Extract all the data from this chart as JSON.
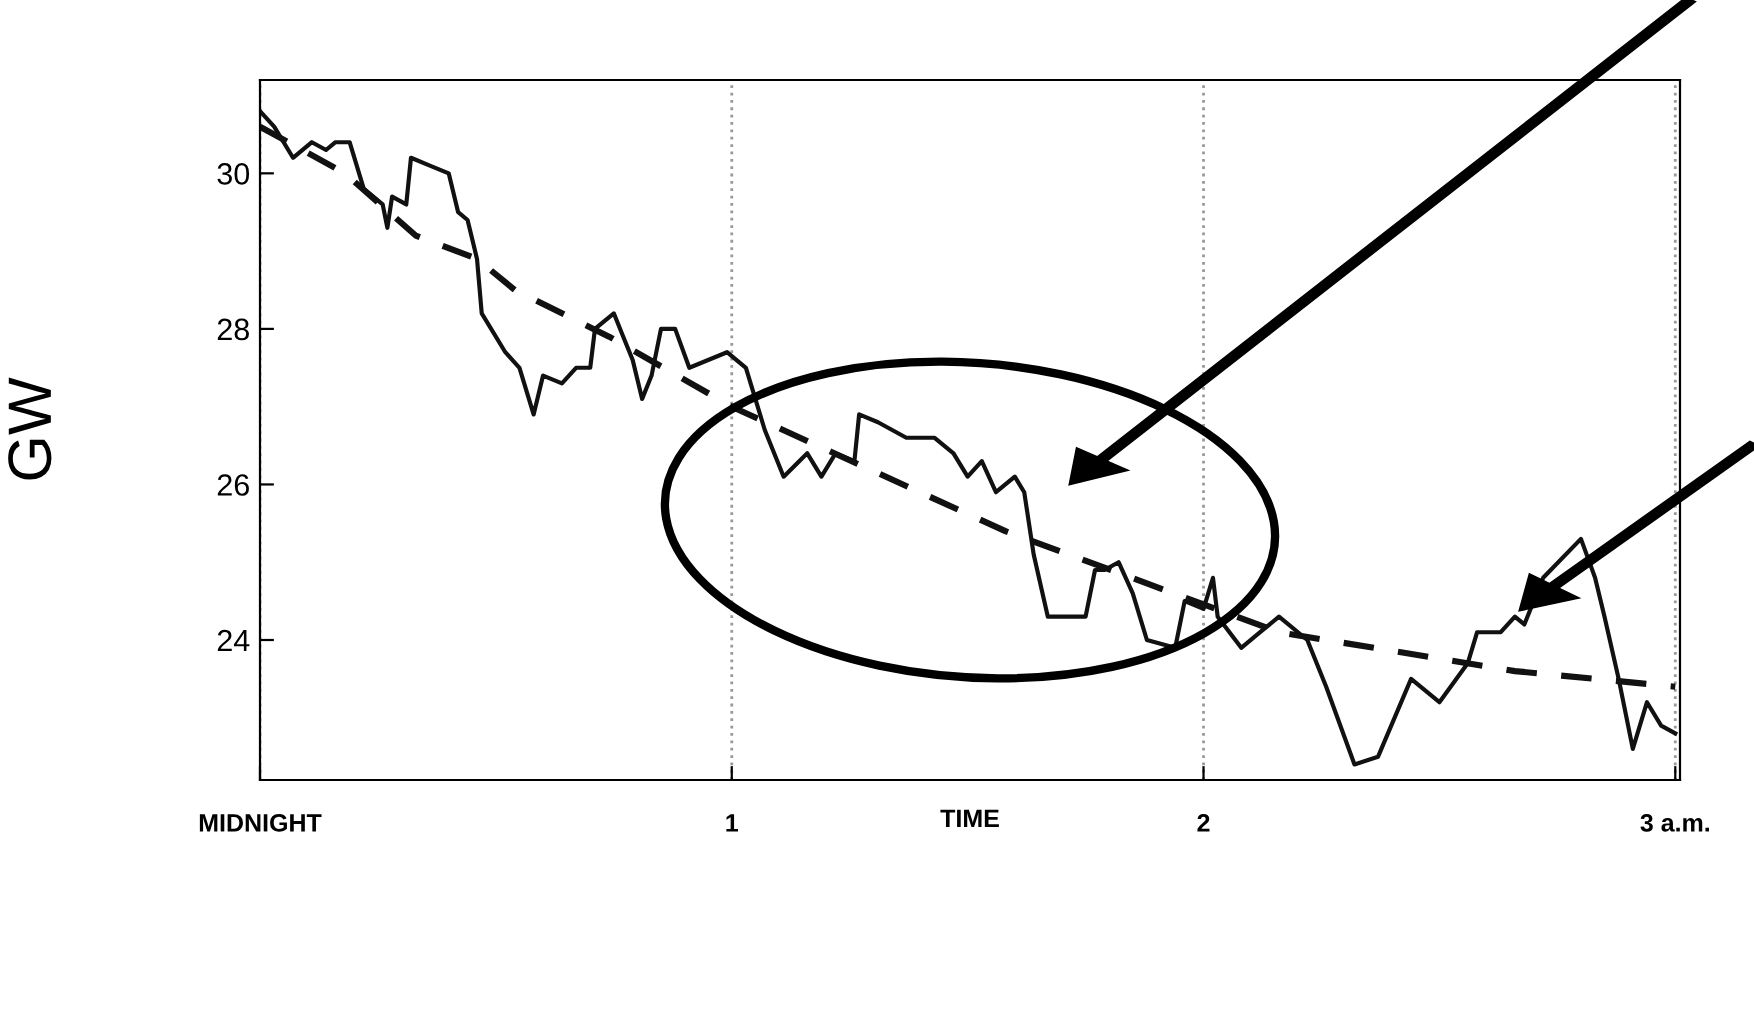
{
  "chart_data": {
    "type": "line",
    "xlabel": "TIME",
    "ylabel": "GW",
    "xlim": [
      0,
      3.01
    ],
    "ylim": [
      22.2,
      31.2
    ],
    "xticks": [
      {
        "value": 0,
        "label": "MIDNIGHT"
      },
      1,
      2,
      {
        "value": 3,
        "label": "3 a.m."
      }
    ],
    "yticks": [
      24,
      26,
      28,
      30
    ],
    "grid": "x",
    "legend": false,
    "series": [
      {
        "color": "#111111",
        "line_style": "solid",
        "x": [
          0.0,
          0.03,
          0.07,
          0.11,
          0.14,
          0.16,
          0.19,
          0.22,
          0.26,
          0.27,
          0.28,
          0.31,
          0.32,
          0.36,
          0.4,
          0.42,
          0.44,
          0.46,
          0.47,
          0.52,
          0.55,
          0.58,
          0.6,
          0.64,
          0.67,
          0.7,
          0.71,
          0.75,
          0.77,
          0.79,
          0.81,
          0.83,
          0.85,
          0.88,
          0.91,
          0.95,
          0.99,
          1.03,
          1.07,
          1.11,
          1.16,
          1.19,
          1.22,
          1.26,
          1.27,
          1.31,
          1.37,
          1.43,
          1.47,
          1.5,
          1.53,
          1.56,
          1.6,
          1.62,
          1.64,
          1.67,
          1.75,
          1.77,
          1.79,
          1.82,
          1.85,
          1.88,
          1.94,
          1.96,
          2.0,
          2.02,
          2.03,
          2.08,
          2.12,
          2.16,
          2.22,
          2.26,
          2.32,
          2.37,
          2.44,
          2.5,
          2.56,
          2.58,
          2.63,
          2.66,
          2.68,
          2.72,
          2.8,
          2.83,
          2.85,
          2.88,
          2.91,
          2.94,
          2.97,
          3.0
        ],
        "values": [
          30.8,
          30.6,
          30.2,
          30.4,
          30.3,
          30.4,
          30.4,
          29.8,
          29.6,
          29.3,
          29.7,
          29.6,
          30.2,
          30.1,
          30.0,
          29.5,
          29.4,
          28.9,
          28.2,
          27.7,
          27.5,
          26.9,
          27.4,
          27.3,
          27.5,
          27.5,
          28.0,
          28.2,
          27.9,
          27.6,
          27.1,
          27.4,
          28.0,
          28.0,
          27.5,
          27.6,
          27.7,
          27.5,
          26.7,
          26.1,
          26.4,
          26.1,
          26.4,
          26.3,
          26.9,
          26.8,
          26.6,
          26.6,
          26.4,
          26.1,
          26.3,
          25.9,
          26.1,
          25.9,
          25.1,
          24.3,
          24.3,
          24.9,
          24.9,
          25.0,
          24.6,
          24.0,
          23.9,
          24.5,
          24.4,
          24.8,
          24.3,
          23.9,
          24.1,
          24.3,
          24.0,
          23.4,
          22.4,
          22.5,
          23.5,
          23.2,
          23.7,
          24.1,
          24.1,
          24.3,
          24.2,
          24.8,
          25.3,
          24.8,
          24.3,
          23.5,
          22.6,
          23.2,
          22.9,
          22.8
        ]
      },
      {
        "color": "#111111",
        "line_style": "dashed",
        "x": [
          0.0,
          0.18,
          0.33,
          0.46,
          0.54,
          0.64,
          0.74,
          1.0,
          1.58,
          2.16,
          2.46,
          2.66,
          3.0
        ],
        "values": [
          30.6,
          30.0,
          29.2,
          28.9,
          28.5,
          28.2,
          27.9,
          27.0,
          25.4,
          24.1,
          23.8,
          23.6,
          23.4
        ]
      }
    ]
  }
}
